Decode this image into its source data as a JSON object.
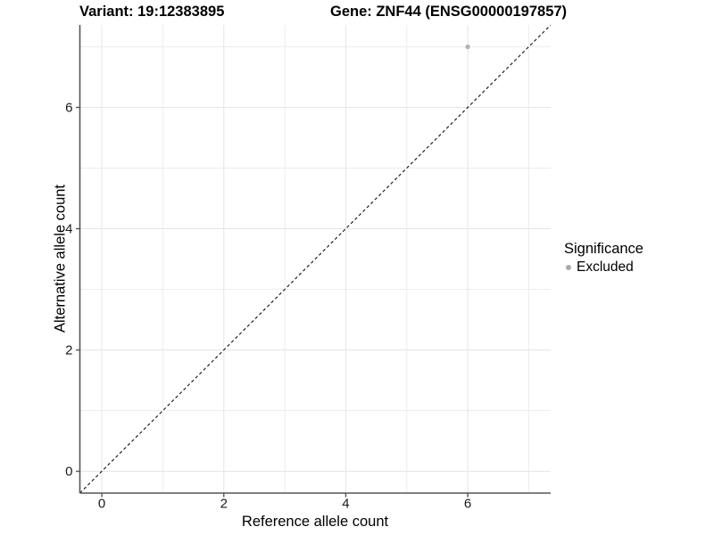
{
  "header": {
    "variant_title": "Variant: 19:12383895",
    "gene_title": "Gene: ZNF44 (ENSG00000197857)"
  },
  "chart_data": {
    "type": "scatter",
    "title_left": "Variant: 19:12383895",
    "title_right": "Gene: ZNF44 (ENSG00000197857)",
    "xlabel": "Reference allele count",
    "ylabel": "Alternative allele count",
    "xlim": [
      -0.36,
      7.36
    ],
    "ylim": [
      -0.36,
      7.36
    ],
    "x_major_ticks": [
      0,
      2,
      4,
      6
    ],
    "y_major_ticks": [
      0,
      2,
      4,
      6
    ],
    "x_minor_ticks": [
      1,
      3,
      5,
      7
    ],
    "y_minor_ticks": [
      1,
      3,
      5,
      7
    ],
    "grid": true,
    "reference_line": {
      "type": "abline",
      "slope": 1,
      "intercept": 0,
      "style": "dashed",
      "color": "#111111"
    },
    "series": [
      {
        "name": "Excluded",
        "color": "#b2b2b2",
        "points": [
          {
            "x": 6,
            "y": 7
          }
        ]
      }
    ],
    "legend": {
      "title": "Significance",
      "position": "right",
      "items": [
        {
          "label": "Excluded",
          "color": "#aaaaaa"
        }
      ]
    }
  },
  "colors": {
    "background": "#ffffff",
    "grid_major": "#e5e5e5",
    "grid_minor": "#ededed",
    "axis_line": "#555555",
    "tick_label": "#1a1a1a",
    "point": "#b2b2b2"
  }
}
